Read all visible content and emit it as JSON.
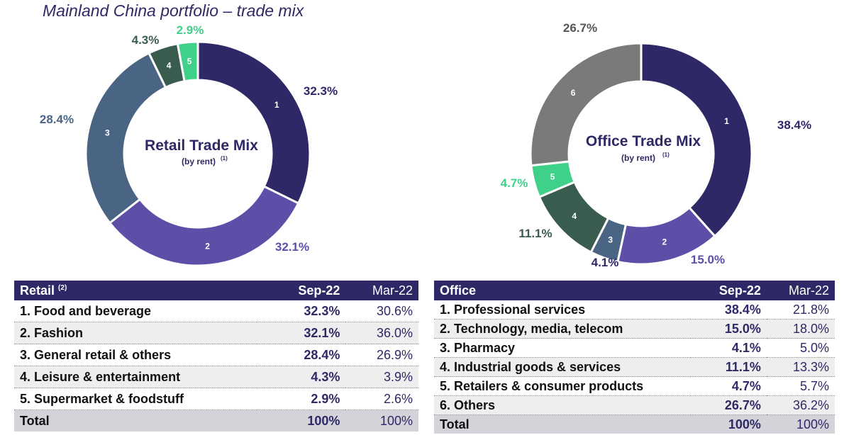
{
  "page": {
    "title": "Mainland China portfolio – trade mix"
  },
  "retail": {
    "title": "Retail Trade Mix",
    "subtitle": "(by rent)",
    "footnote": "(1)",
    "table_header": {
      "label": "Retail",
      "note": "(2)",
      "col1": "Sep-22",
      "col2": "Mar-22"
    },
    "rows": [
      {
        "name": "1. Food and beverage",
        "sep": "32.3%",
        "mar": "30.6%"
      },
      {
        "name": "2. Fashion",
        "sep": "32.1%",
        "mar": "36.0%"
      },
      {
        "name": "3. General retail & others",
        "sep": "28.4%",
        "mar": "26.9%"
      },
      {
        "name": "4. Leisure & entertainment",
        "sep": "4.3%",
        "mar": "3.9%"
      },
      {
        "name": "5. Supermarket & foodstuff",
        "sep": "2.9%",
        "mar": "2.6%"
      }
    ],
    "total": {
      "name": "Total",
      "sep": "100%",
      "mar": "100%"
    }
  },
  "office": {
    "title": "Office Trade Mix",
    "subtitle": "(by rent)",
    "footnote": "(1)",
    "table_header": {
      "label": "Office",
      "col1": "Sep-22",
      "col2": "Mar-22"
    },
    "rows": [
      {
        "name": "1. Professional services",
        "sep": "38.4%",
        "mar": "21.8%"
      },
      {
        "name": "2. Technology, media, telecom",
        "sep": "15.0%",
        "mar": "18.0%"
      },
      {
        "name": "3. Pharmacy",
        "sep": "4.1%",
        "mar": "5.0%"
      },
      {
        "name": "4. Industrial goods & services",
        "sep": "11.1%",
        "mar": "13.3%"
      },
      {
        "name": "5. Retailers & consumer products",
        "sep": "4.7%",
        "mar": "5.7%"
      },
      {
        "name": "6. Others",
        "sep": "26.7%",
        "mar": "36.2%"
      }
    ],
    "total": {
      "name": "Total",
      "sep": "100%",
      "mar": "100%"
    }
  },
  "chart_data": [
    {
      "type": "pie",
      "title": "Retail Trade Mix (by rent)",
      "categories": [
        "Food and beverage",
        "Fashion",
        "General retail & others",
        "Leisure & entertainment",
        "Supermarket & foodstuff"
      ],
      "segment_numbers": [
        "1",
        "2",
        "3",
        "4",
        "5"
      ],
      "values": [
        32.3,
        32.1,
        28.4,
        4.3,
        2.9
      ],
      "labels": [
        "32.3%",
        "32.1%",
        "28.4%",
        "4.3%",
        "2.9%"
      ],
      "colors": [
        "#2e2966",
        "#5f4ea8",
        "#4a6584",
        "#3a5c4e",
        "#3fd08a"
      ],
      "label_colors": [
        "#2e2966",
        "#5f4ea8",
        "#4a6584",
        "#3a5c4e",
        "#3fd08a"
      ],
      "donut": true
    },
    {
      "type": "pie",
      "title": "Office Trade Mix (by rent)",
      "categories": [
        "Professional services",
        "Technology, media, telecom",
        "Pharmacy",
        "Industrial goods & services",
        "Retailers & consumer products",
        "Others"
      ],
      "segment_numbers": [
        "1",
        "2",
        "3",
        "4",
        "5",
        "6"
      ],
      "values": [
        38.4,
        15.0,
        4.1,
        11.1,
        4.7,
        26.7
      ],
      "labels": [
        "38.4%",
        "15.0%",
        "4.1%",
        "11.1%",
        "4.7%",
        "26.7%"
      ],
      "colors": [
        "#2e2966",
        "#5f4ea8",
        "#4a6584",
        "#3a5c4e",
        "#3fd08a",
        "#7a7a7a"
      ],
      "label_colors": [
        "#2e2966",
        "#5f4ea8",
        "#2e2966",
        "#3a5c4e",
        "#3fd08a",
        "#555555"
      ],
      "donut": true
    }
  ]
}
